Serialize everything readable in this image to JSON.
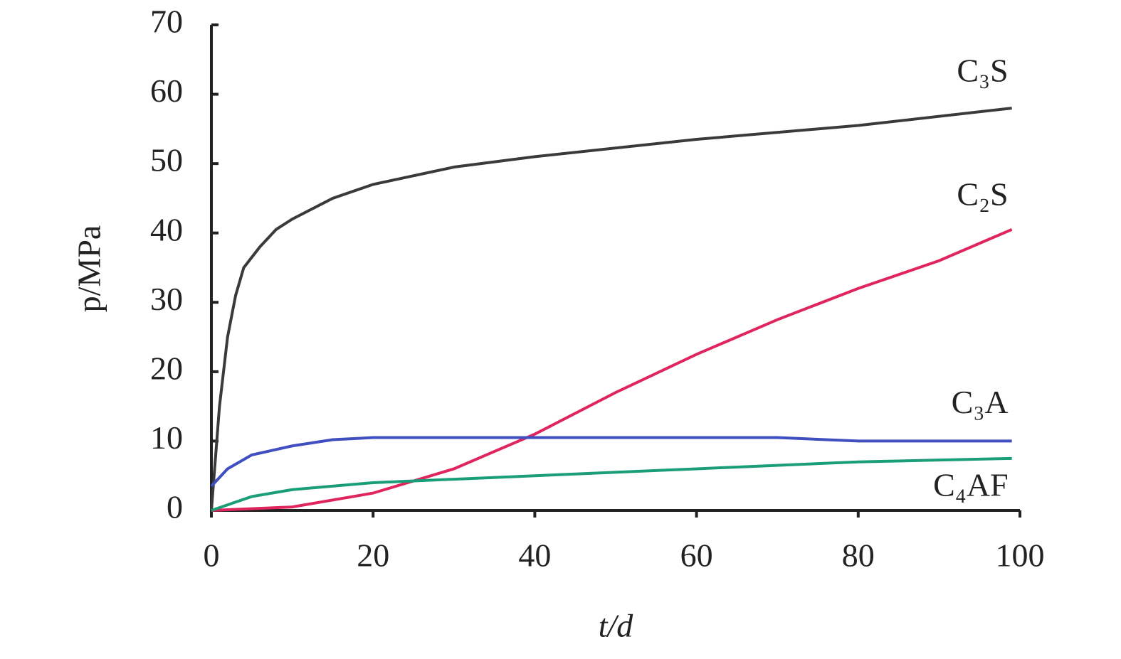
{
  "chart_data": {
    "type": "line",
    "xlabel": "t/d",
    "ylabel": "p/MPa",
    "xlim": [
      0,
      100
    ],
    "xticks": [
      0,
      20,
      40,
      60,
      80,
      100
    ],
    "ylim": [
      0,
      70
    ],
    "yticks": [
      0,
      10,
      20,
      30,
      40,
      50,
      60,
      70
    ],
    "grid": false,
    "series": [
      {
        "name": "C₃S",
        "color": "#3a3a3a",
        "x": [
          0,
          1,
          2,
          3,
          4,
          6,
          8,
          10,
          15,
          20,
          30,
          40,
          60,
          80,
          99
        ],
        "values": [
          0,
          15,
          25,
          31,
          35,
          38,
          40.5,
          42,
          45,
          47,
          49.5,
          51,
          53.5,
          55.5,
          58
        ]
      },
      {
        "name": "C₂S",
        "color": "#e0245e",
        "x": [
          0,
          10,
          20,
          30,
          40,
          50,
          60,
          70,
          80,
          90,
          99
        ],
        "values": [
          0,
          0.5,
          2.5,
          6,
          11,
          17,
          22.5,
          27.5,
          32,
          36,
          40.5
        ]
      },
      {
        "name": "C₃A",
        "color": "#3f4fc0",
        "x": [
          0,
          2,
          5,
          10,
          15,
          20,
          40,
          70,
          80,
          99
        ],
        "values": [
          3.5,
          6,
          8,
          9.3,
          10.2,
          10.5,
          10.5,
          10.5,
          10,
          10
        ]
      },
      {
        "name": "C₄AF",
        "color": "#1a9e77",
        "x": [
          0,
          5,
          10,
          20,
          40,
          60,
          80,
          99
        ],
        "values": [
          0,
          2,
          3,
          4,
          5,
          6,
          7,
          7.5
        ]
      }
    ]
  }
}
